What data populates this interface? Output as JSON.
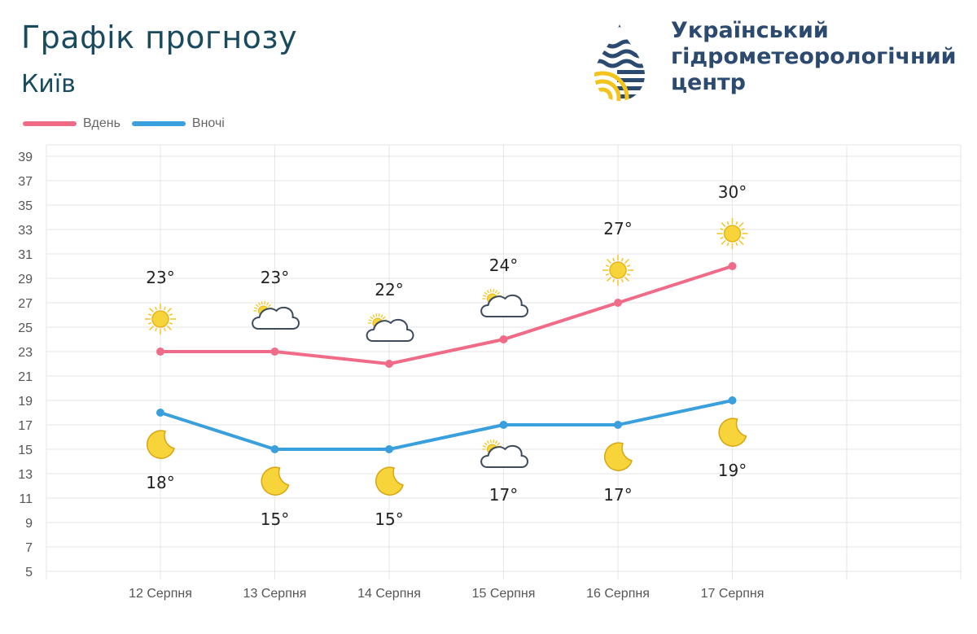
{
  "header": {
    "title": "Графік прогнозу",
    "city": "Київ"
  },
  "logo": {
    "line1": "Український",
    "line2": "гідрометеорологічний",
    "line3": "центр",
    "colors": {
      "text": "#2c4a70",
      "drop": "#2c4a70",
      "accent": "#f2c41c"
    }
  },
  "chart_data": {
    "type": "line",
    "categories": [
      "12 Серпня",
      "13 Серпня",
      "14 Серпня",
      "15 Серпня",
      "16 Серпня",
      "17 Серпня"
    ],
    "series": [
      {
        "name": "Вдень",
        "color": "#f06b88",
        "values": [
          23,
          23,
          22,
          24,
          27,
          30
        ],
        "labels": [
          "23°",
          "23°",
          "22°",
          "24°",
          "27°",
          "30°"
        ],
        "icons": [
          "sun-icon",
          "sun-cloud-icon",
          "sun-cloud-icon",
          "sun-cloud-icon",
          "sun-icon",
          "sun-icon"
        ]
      },
      {
        "name": "Вночі",
        "color": "#3a9fdd",
        "values": [
          18,
          15,
          15,
          17,
          17,
          19
        ],
        "labels": [
          "18°",
          "15°",
          "15°",
          "17°",
          "17°",
          "19°"
        ],
        "icons": [
          "moon-icon",
          "moon-icon",
          "moon-icon",
          "sun-cloud-icon",
          "moon-icon",
          "moon-icon"
        ]
      }
    ],
    "ylim": [
      5,
      39
    ],
    "yticks": [
      5,
      7,
      9,
      11,
      13,
      15,
      17,
      19,
      21,
      23,
      25,
      27,
      29,
      31,
      33,
      35,
      37,
      39
    ],
    "grid": true,
    "legend": "top-left"
  }
}
